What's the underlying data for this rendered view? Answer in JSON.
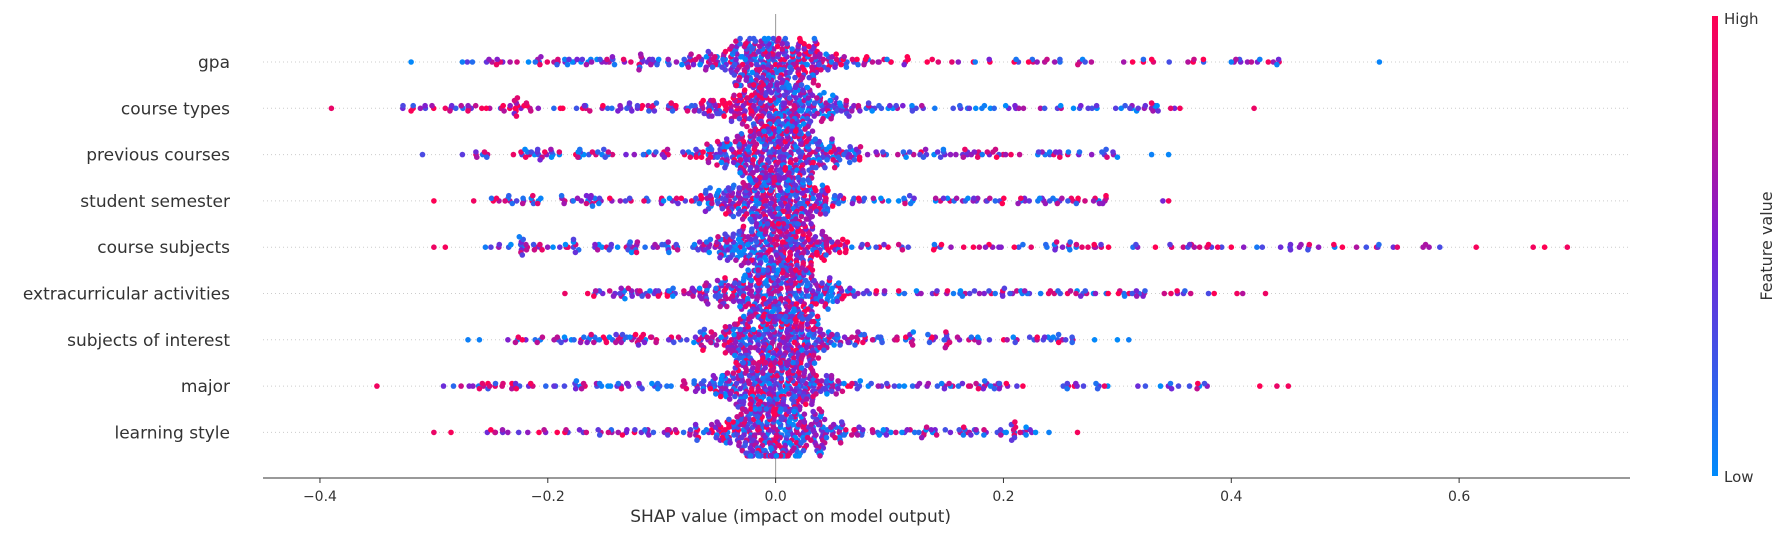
{
  "chart_data": {
    "type": "scatter",
    "subtype": "shap-beeswarm",
    "xlabel": "SHAP value (impact on model output)",
    "xlim": [
      -0.45,
      0.75
    ],
    "x_ticks": [
      -0.4,
      -0.2,
      0.0,
      0.2,
      0.4,
      0.6
    ],
    "x_tick_labels": [
      "−0.4",
      "−0.2",
      "0.0",
      "0.2",
      "0.4",
      "0.6"
    ],
    "features": [
      {
        "name": "gpa",
        "range": [
          -0.32,
          0.53
        ],
        "left_extremes": [
          -0.32,
          -0.275,
          -0.245
        ],
        "right_extremes": [
          0.4,
          0.425,
          0.44,
          0.53
        ],
        "outlier_color": "low",
        "bias": 0.02
      },
      {
        "name": "course types",
        "range": [
          -0.39,
          0.42
        ],
        "left_extremes": [
          -0.39,
          -0.32,
          -0.29,
          -0.27
        ],
        "right_extremes": [
          0.33,
          0.355,
          0.42
        ],
        "outlier_color": "high",
        "bias": -0.05
      },
      {
        "name": "previous courses",
        "range": [
          -0.31,
          0.35
        ],
        "left_extremes": [
          -0.31,
          -0.275,
          -0.22
        ],
        "right_extremes": [
          0.3,
          0.33,
          0.345
        ],
        "outlier_color": "low",
        "bias": 0.0
      },
      {
        "name": "student semester",
        "range": [
          -0.3,
          0.35
        ],
        "left_extremes": [
          -0.3,
          -0.265,
          -0.245
        ],
        "right_extremes": [
          0.29,
          0.34,
          0.345
        ],
        "outlier_color": "high",
        "bias": 0.0
      },
      {
        "name": "course subjects",
        "range": [
          -0.3,
          0.7
        ],
        "left_extremes": [
          -0.3,
          -0.29,
          -0.225,
          -0.205
        ],
        "right_extremes": [
          0.38,
          0.4,
          0.49,
          0.615,
          0.665,
          0.675,
          0.695
        ],
        "outlier_color": "high",
        "bias": 0.03
      },
      {
        "name": "extracurricular activities",
        "range": [
          -0.19,
          0.43
        ],
        "left_extremes": [
          -0.185,
          -0.165
        ],
        "right_extremes": [
          0.38,
          0.385,
          0.405,
          0.41,
          0.43
        ],
        "outlier_color": "high",
        "bias": 0.0
      },
      {
        "name": "subjects of interest",
        "range": [
          -0.27,
          0.31
        ],
        "left_extremes": [
          -0.27,
          -0.26,
          -0.235
        ],
        "right_extremes": [
          0.28,
          0.3,
          0.31
        ],
        "outlier_color": "low",
        "bias": 0.0
      },
      {
        "name": "major",
        "range": [
          -0.35,
          0.45
        ],
        "left_extremes": [
          -0.35,
          -0.26,
          -0.215
        ],
        "right_extremes": [
          0.37,
          0.425,
          0.44,
          0.45
        ],
        "outlier_color": "high",
        "bias": 0.0
      },
      {
        "name": "learning style",
        "range": [
          -0.3,
          0.27
        ],
        "left_extremes": [
          -0.3,
          -0.285,
          -0.25
        ],
        "right_extremes": [
          0.21,
          0.24,
          0.265
        ],
        "outlier_color": "high",
        "bias": -0.03
      }
    ],
    "colorbar": {
      "label": "Feature value",
      "high_label": "High",
      "low_label": "Low",
      "high_color": "#ff0052",
      "mid_color": "#7a20d4",
      "low_color": "#008bfb"
    },
    "grid": false,
    "row_guides": "dotted"
  }
}
